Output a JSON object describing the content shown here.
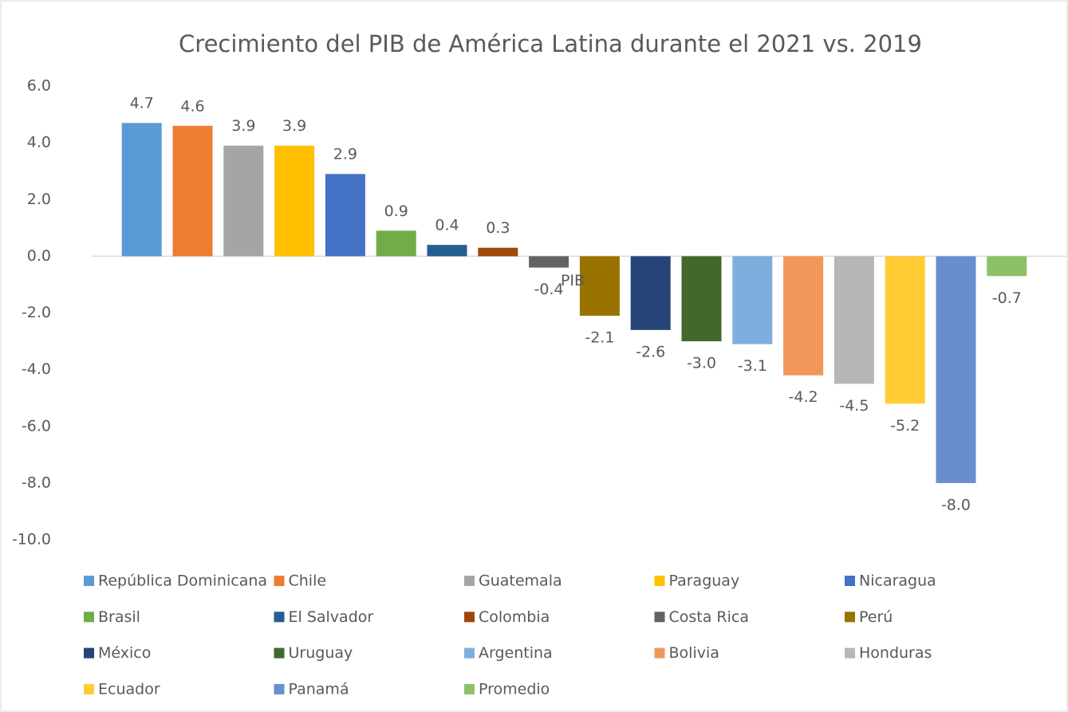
{
  "chart_data": {
    "type": "bar",
    "title": "Crecimiento del PIB de América Latina durante el 2021 vs. 2019",
    "categories": [
      "PIB"
    ],
    "series": [
      {
        "name": "República Dominicana",
        "color": "#5b9bd5",
        "values": [
          4.7
        ]
      },
      {
        "name": "Chile",
        "color": "#ed7d31",
        "values": [
          4.6
        ]
      },
      {
        "name": "Guatemala",
        "color": "#a5a5a5",
        "values": [
          3.9
        ]
      },
      {
        "name": "Paraguay",
        "color": "#ffc000",
        "values": [
          3.9
        ]
      },
      {
        "name": "Nicaragua",
        "color": "#4472c4",
        "values": [
          2.9
        ]
      },
      {
        "name": "Brasil",
        "color": "#70ad47",
        "values": [
          0.9
        ]
      },
      {
        "name": "El Salvador",
        "color": "#255e91",
        "values": [
          0.4
        ]
      },
      {
        "name": "Colombia",
        "color": "#9e480e",
        "values": [
          0.3
        ]
      },
      {
        "name": "Costa Rica",
        "color": "#636363",
        "values": [
          -0.4
        ]
      },
      {
        "name": "Perú",
        "color": "#997300",
        "values": [
          -2.1
        ]
      },
      {
        "name": "México",
        "color": "#264478",
        "values": [
          -2.6
        ]
      },
      {
        "name": "Uruguay",
        "color": "#43682b",
        "values": [
          -3.0
        ],
        "value_labels": [
          "-3.0"
        ]
      },
      {
        "name": "Argentina",
        "color": "#7cafdd",
        "values": [
          -3.1
        ]
      },
      {
        "name": "Bolivia",
        "color": "#f1975a",
        "values": [
          -4.2
        ]
      },
      {
        "name": "Honduras",
        "color": "#b7b7b7",
        "values": [
          -4.5
        ]
      },
      {
        "name": "Ecuador",
        "color": "#ffcd33",
        "values": [
          -5.2
        ]
      },
      {
        "name": "Panamá",
        "color": "#698ed0",
        "values": [
          -8.0
        ],
        "value_labels": [
          "-8.0"
        ]
      },
      {
        "name": "Promedio",
        "color": "#8cc168",
        "values": [
          -0.7
        ]
      }
    ],
    "ylim": [
      -10,
      6
    ],
    "yticks": [
      {
        "value": -10,
        "label": "-10.0"
      },
      {
        "value": -8,
        "label": "-8.0"
      },
      {
        "value": -6,
        "label": "-6.0"
      },
      {
        "value": -4,
        "label": "-4.0"
      },
      {
        "value": -2,
        "label": "-2.0"
      },
      {
        "value": 0,
        "label": "0.0"
      },
      {
        "value": 2,
        "label": "2.0"
      },
      {
        "value": 4,
        "label": "4.0"
      },
      {
        "value": 6,
        "label": "6.0"
      }
    ],
    "grid": false,
    "legend": "bottom"
  }
}
